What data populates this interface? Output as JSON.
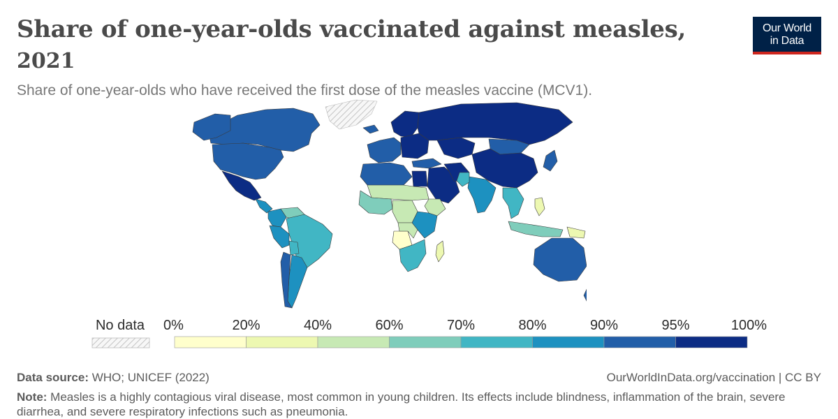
{
  "header": {
    "title": "Share of one-year-olds vaccinated against measles,",
    "title_year": "2021",
    "subtitle": "Share of one-year-olds who have received the first dose of the measles vaccine (MCV1).",
    "logo_line1": "Our World",
    "logo_line2": "in Data"
  },
  "chart_data": {
    "type": "choropleth",
    "title": "Share of one-year-olds vaccinated against measles, 2021",
    "subtitle": "Share of one-year-olds who have received the first dose of the measles vaccine (MCV1).",
    "legend": {
      "no_data_label": "No data",
      "ticks": [
        "0%",
        "20%",
        "40%",
        "60%",
        "70%",
        "80%",
        "90%",
        "95%",
        "100%"
      ],
      "bins": [
        {
          "min": 0,
          "max": 20,
          "color": "#ffffcc"
        },
        {
          "min": 20,
          "max": 40,
          "color": "#edf8b1"
        },
        {
          "min": 40,
          "max": 60,
          "color": "#c7e9b4"
        },
        {
          "min": 60,
          "max": 70,
          "color": "#7fcdbb"
        },
        {
          "min": 70,
          "max": 80,
          "color": "#41b6c4"
        },
        {
          "min": 80,
          "max": 90,
          "color": "#1d91c0"
        },
        {
          "min": 90,
          "max": 95,
          "color": "#225ea8"
        },
        {
          "min": 95,
          "max": 100,
          "color": "#0c2c84"
        }
      ]
    },
    "regions": [
      {
        "name": "Canada",
        "bin": 6
      },
      {
        "name": "Alaska",
        "bin": 6
      },
      {
        "name": "Greenland",
        "bin": -1
      },
      {
        "name": "United States",
        "bin": 6
      },
      {
        "name": "Mexico",
        "bin": 7
      },
      {
        "name": "Central America",
        "bin": 5
      },
      {
        "name": "Colombia",
        "bin": 5
      },
      {
        "name": "Venezuela",
        "bin": 3
      },
      {
        "name": "Brazil",
        "bin": 4
      },
      {
        "name": "Peru",
        "bin": 5
      },
      {
        "name": "Bolivia",
        "bin": 4
      },
      {
        "name": "Argentina",
        "bin": 5
      },
      {
        "name": "Chile",
        "bin": 6
      },
      {
        "name": "Iceland",
        "bin": 6
      },
      {
        "name": "Scandinavia",
        "bin": 7
      },
      {
        "name": "Western Europe",
        "bin": 6
      },
      {
        "name": "Eastern Europe",
        "bin": 7
      },
      {
        "name": "Russia",
        "bin": 7
      },
      {
        "name": "Kazakhstan",
        "bin": 7
      },
      {
        "name": "Mongolia",
        "bin": 6
      },
      {
        "name": "China",
        "bin": 7
      },
      {
        "name": "Japan",
        "bin": 6
      },
      {
        "name": "Turkey",
        "bin": 6
      },
      {
        "name": "Middle East",
        "bin": 7
      },
      {
        "name": "Iran",
        "bin": 7
      },
      {
        "name": "India",
        "bin": 5
      },
      {
        "name": "Pakistan",
        "bin": 4
      },
      {
        "name": "Southeast Asia",
        "bin": 4
      },
      {
        "name": "Philippines",
        "bin": 1
      },
      {
        "name": "Indonesia",
        "bin": 3
      },
      {
        "name": "Papua New Guinea",
        "bin": 1
      },
      {
        "name": "Australia",
        "bin": 6
      },
      {
        "name": "New Zealand",
        "bin": 6
      },
      {
        "name": "North Africa",
        "bin": 6
      },
      {
        "name": "Egypt",
        "bin": 7
      },
      {
        "name": "Sahel",
        "bin": 2
      },
      {
        "name": "West Africa",
        "bin": 3
      },
      {
        "name": "Central Africa",
        "bin": 2
      },
      {
        "name": "Ethiopia",
        "bin": 2
      },
      {
        "name": "East Africa",
        "bin": 5
      },
      {
        "name": "Angola",
        "bin": 0
      },
      {
        "name": "DR Congo",
        "bin": 2
      },
      {
        "name": "Southern Africa",
        "bin": 4
      },
      {
        "name": "Madagascar",
        "bin": 1
      }
    ]
  },
  "footer": {
    "source_label": "Data source:",
    "source_text": " WHO; UNICEF (2022)",
    "url": "OurWorldInData.org/vaccination | CC BY",
    "note_label": "Note:",
    "note_text": " Measles is a highly contagious viral disease, most common in young children. Its effects include blindness, inflammation of the brain, severe diarrhea, and severe respiratory infections such as pneumonia."
  }
}
